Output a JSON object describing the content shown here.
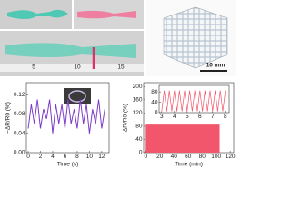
{
  "photos": {
    "ruler_labels": [
      "5",
      "10",
      "15"
    ],
    "scale_bar": "10 mm"
  },
  "chart_data": [
    {
      "type": "line",
      "ylabel": "−ΔR/R0 (%)",
      "xlabel": "Time (s)",
      "xlim": [
        -0.3,
        13.2
      ],
      "ylim": [
        0.0,
        0.145
      ],
      "xticks": [
        0,
        2,
        4,
        6,
        8,
        10,
        12
      ],
      "yticks": [
        {
          "value": 0.0,
          "label": "0.00"
        },
        {
          "value": 0.04,
          "label": "0.04"
        },
        {
          "value": 0.08,
          "label": "0.08"
        },
        {
          "value": 0.12,
          "label": "0.12"
        }
      ],
      "series": [
        {
          "color": "#7d3cc8",
          "x": [
            0,
            0.5,
            1,
            1.5,
            2,
            2.5,
            3,
            3.5,
            4,
            4.5,
            5,
            5.5,
            6,
            6.5,
            7,
            7.5,
            8,
            8.5,
            9,
            9.5,
            10,
            10.5,
            11,
            11.5,
            12,
            12.5
          ],
          "values": [
            0.05,
            0.1,
            0.06,
            0.11,
            0.05,
            0.09,
            0.07,
            0.11,
            0.04,
            0.1,
            0.06,
            0.1,
            0.05,
            0.11,
            0.06,
            0.09,
            0.05,
            0.11,
            0.06,
            0.1,
            0.04,
            0.09,
            0.06,
            0.11,
            0.05,
            0.09
          ]
        }
      ]
    },
    {
      "type": "band",
      "ylabel": "ΔR/R0 (%)",
      "xlabel": "Time (min)",
      "xlim": [
        -3,
        125
      ],
      "ylim": [
        0,
        212
      ],
      "xticks": [
        0,
        20,
        40,
        60,
        80,
        100,
        120
      ],
      "yticks": [
        0,
        40,
        80,
        120,
        160,
        200
      ],
      "series": [
        {
          "color": "#f2566c",
          "x": [
            0,
            105
          ],
          "upper": [
            85,
            85
          ],
          "lower": [
            0,
            0
          ]
        }
      ],
      "inset": {
        "type": "line",
        "xlim": [
          2.8,
          8.3
        ],
        "ylim": [
          0,
          105
        ],
        "xticks": [
          3,
          4,
          5,
          6,
          7,
          8
        ],
        "yticks": [
          0,
          40,
          80
        ],
        "series": [
          {
            "color": "#f2566c",
            "x": [
              3.0,
              3.2,
              3.4,
              3.6,
              3.8,
              4.0,
              4.2,
              4.4,
              4.6,
              4.8,
              5.0,
              5.2,
              5.4,
              5.6,
              5.8,
              6.0,
              6.2,
              6.4,
              6.6,
              6.8,
              7.0,
              7.2,
              7.4,
              7.6,
              7.8,
              8.0
            ],
            "values": [
              5,
              85,
              5,
              85,
              5,
              85,
              5,
              85,
              5,
              85,
              5,
              85,
              5,
              85,
              5,
              85,
              5,
              85,
              5,
              85,
              5,
              85,
              5,
              85,
              5,
              85
            ]
          }
        ]
      }
    }
  ]
}
